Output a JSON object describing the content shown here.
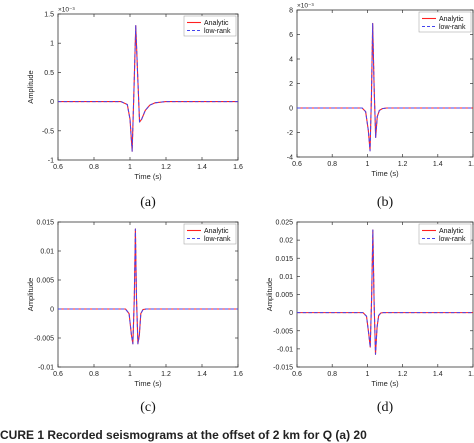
{
  "caption": "CURE 1   Recorded seismograms at the offset of 2 km for Q    (a) 20",
  "chart_data": [
    {
      "type": "line",
      "sub_caption": "(a)",
      "xlabel": "Time (s)",
      "ylabel": "Amplitude",
      "xlim": [
        0.6,
        1.6
      ],
      "ylim": [
        -1,
        1.5
      ],
      "y_exponent": "×10⁻³",
      "x_ticks": [
        "0.6",
        "0.8",
        "1",
        "1.2",
        "1.4",
        "1.6"
      ],
      "y_ticks": [
        "-1",
        "-0.5",
        "0",
        "0.5",
        "1",
        "1.5"
      ],
      "legend": [
        "Analytic",
        "low-rank"
      ],
      "legend_position": "top-right",
      "series": [
        {
          "name": "Analytic",
          "color": "#ff2020",
          "style": "solid",
          "x": [
            0.6,
            0.95,
            0.985,
            1.0,
            1.012,
            1.022,
            1.032,
            1.042,
            1.053,
            1.065,
            1.085,
            1.11,
            1.14,
            1.2,
            1.6
          ],
          "y": [
            0,
            0,
            -0.05,
            -0.3,
            -0.85,
            0.2,
            1.3,
            0.5,
            -0.35,
            -0.3,
            -0.15,
            -0.06,
            -0.02,
            0,
            0
          ]
        },
        {
          "name": "low-rank",
          "color": "#4444ee",
          "style": "dashed",
          "x": [
            0.6,
            0.95,
            0.985,
            1.0,
            1.012,
            1.022,
            1.032,
            1.042,
            1.053,
            1.065,
            1.085,
            1.11,
            1.14,
            1.2,
            1.6
          ],
          "y": [
            0,
            0,
            -0.05,
            -0.3,
            -0.85,
            0.2,
            1.3,
            0.5,
            -0.35,
            -0.3,
            -0.15,
            -0.06,
            -0.02,
            0,
            0
          ]
        }
      ]
    },
    {
      "type": "line",
      "sub_caption": "(b)",
      "xlabel": "Time (s)",
      "ylabel": "",
      "xlim": [
        0.6,
        1.6
      ],
      "ylim": [
        -4,
        8
      ],
      "y_exponent": "×10⁻³",
      "x_ticks": [
        "0.6",
        "0.8",
        "1",
        "1.2",
        "1.4",
        "1.6"
      ],
      "y_ticks": [
        "-4",
        "-2",
        "0",
        "2",
        "4",
        "6",
        "8"
      ],
      "legend": [
        "Analytic",
        "low-rank"
      ],
      "legend_position": "top-right",
      "series": [
        {
          "name": "Analytic",
          "color": "#ff2020",
          "style": "solid",
          "x": [
            0.6,
            0.97,
            0.99,
            1.005,
            1.015,
            1.023,
            1.03,
            1.038,
            1.047,
            1.056,
            1.068,
            1.085,
            1.11,
            1.6
          ],
          "y": [
            0,
            0,
            -0.3,
            -1.8,
            -3.5,
            1.0,
            6.9,
            1.8,
            -2.4,
            -0.7,
            -0.2,
            -0.05,
            0,
            0
          ]
        },
        {
          "name": "low-rank",
          "color": "#4444ee",
          "style": "dashed",
          "x": [
            0.6,
            0.97,
            0.99,
            1.005,
            1.015,
            1.023,
            1.03,
            1.038,
            1.047,
            1.056,
            1.068,
            1.085,
            1.11,
            1.6
          ],
          "y": [
            0,
            0,
            -0.3,
            -1.8,
            -3.5,
            1.0,
            6.9,
            1.8,
            -2.4,
            -0.7,
            -0.2,
            -0.05,
            0,
            0
          ]
        }
      ]
    },
    {
      "type": "line",
      "sub_caption": "(c)",
      "xlabel": "Time (s)",
      "ylabel": "Amplitude",
      "xlim": [
        0.6,
        1.6
      ],
      "ylim": [
        -0.01,
        0.015
      ],
      "y_exponent": "",
      "x_ticks": [
        "0.6",
        "0.8",
        "1",
        "1.2",
        "1.4",
        "1.6"
      ],
      "y_ticks": [
        "-0.01",
        "-0.005",
        "0",
        "0.005",
        "0.01",
        "0.015"
      ],
      "legend": [
        "Analytic",
        "low-rank"
      ],
      "legend_position": "top-right",
      "series": [
        {
          "name": "Analytic",
          "color": "#ff2020",
          "style": "solid",
          "x": [
            0.6,
            0.975,
            0.995,
            1.008,
            1.016,
            1.024,
            1.03,
            1.036,
            1.044,
            1.052,
            1.06,
            1.072,
            1.09,
            1.6
          ],
          "y": [
            0,
            0,
            -0.0008,
            -0.0045,
            -0.006,
            0.002,
            0.0138,
            0.002,
            -0.006,
            -0.0045,
            -0.0008,
            -0.0001,
            0,
            0
          ]
        },
        {
          "name": "low-rank",
          "color": "#4444ee",
          "style": "dashed",
          "x": [
            0.6,
            0.975,
            0.995,
            1.008,
            1.016,
            1.024,
            1.03,
            1.036,
            1.044,
            1.052,
            1.06,
            1.072,
            1.09,
            1.6
          ],
          "y": [
            0,
            0,
            -0.0008,
            -0.0045,
            -0.006,
            0.002,
            0.0138,
            0.002,
            -0.006,
            -0.0045,
            -0.0008,
            -0.0001,
            0,
            0
          ]
        }
      ]
    },
    {
      "type": "line",
      "sub_caption": "(d)",
      "xlabel": "Time (s)",
      "ylabel": "Amplitude",
      "xlim": [
        0.6,
        1.6
      ],
      "ylim": [
        -0.015,
        0.025
      ],
      "y_exponent": "",
      "x_ticks": [
        "0.6",
        "0.8",
        "1",
        "1.2",
        "1.4",
        "1.6"
      ],
      "y_ticks": [
        "-0.015",
        "-0.01",
        "-0.005",
        "0",
        "0.005",
        "0.01",
        "0.015",
        "0.02",
        "0.025"
      ],
      "legend": [
        "Analytic",
        "low-rank"
      ],
      "legend_position": "top-right",
      "series": [
        {
          "name": "Analytic",
          "color": "#ff2020",
          "style": "solid",
          "x": [
            0.6,
            0.975,
            0.995,
            1.008,
            1.016,
            1.024,
            1.031,
            1.038,
            1.046,
            1.055,
            1.064,
            1.076,
            1.09,
            1.6
          ],
          "y": [
            0,
            0,
            -0.001,
            -0.006,
            -0.0095,
            0.004,
            0.0228,
            0.003,
            -0.0115,
            -0.004,
            -0.0008,
            -0.0001,
            0,
            0
          ]
        },
        {
          "name": "low-rank",
          "color": "#4444ee",
          "style": "dashed",
          "x": [
            0.6,
            0.975,
            0.995,
            1.008,
            1.016,
            1.024,
            1.031,
            1.038,
            1.046,
            1.055,
            1.064,
            1.076,
            1.09,
            1.6
          ],
          "y": [
            0,
            0,
            -0.001,
            -0.006,
            -0.0095,
            0.004,
            0.0228,
            0.003,
            -0.0115,
            -0.004,
            -0.0008,
            -0.0001,
            0,
            0
          ]
        }
      ]
    }
  ]
}
